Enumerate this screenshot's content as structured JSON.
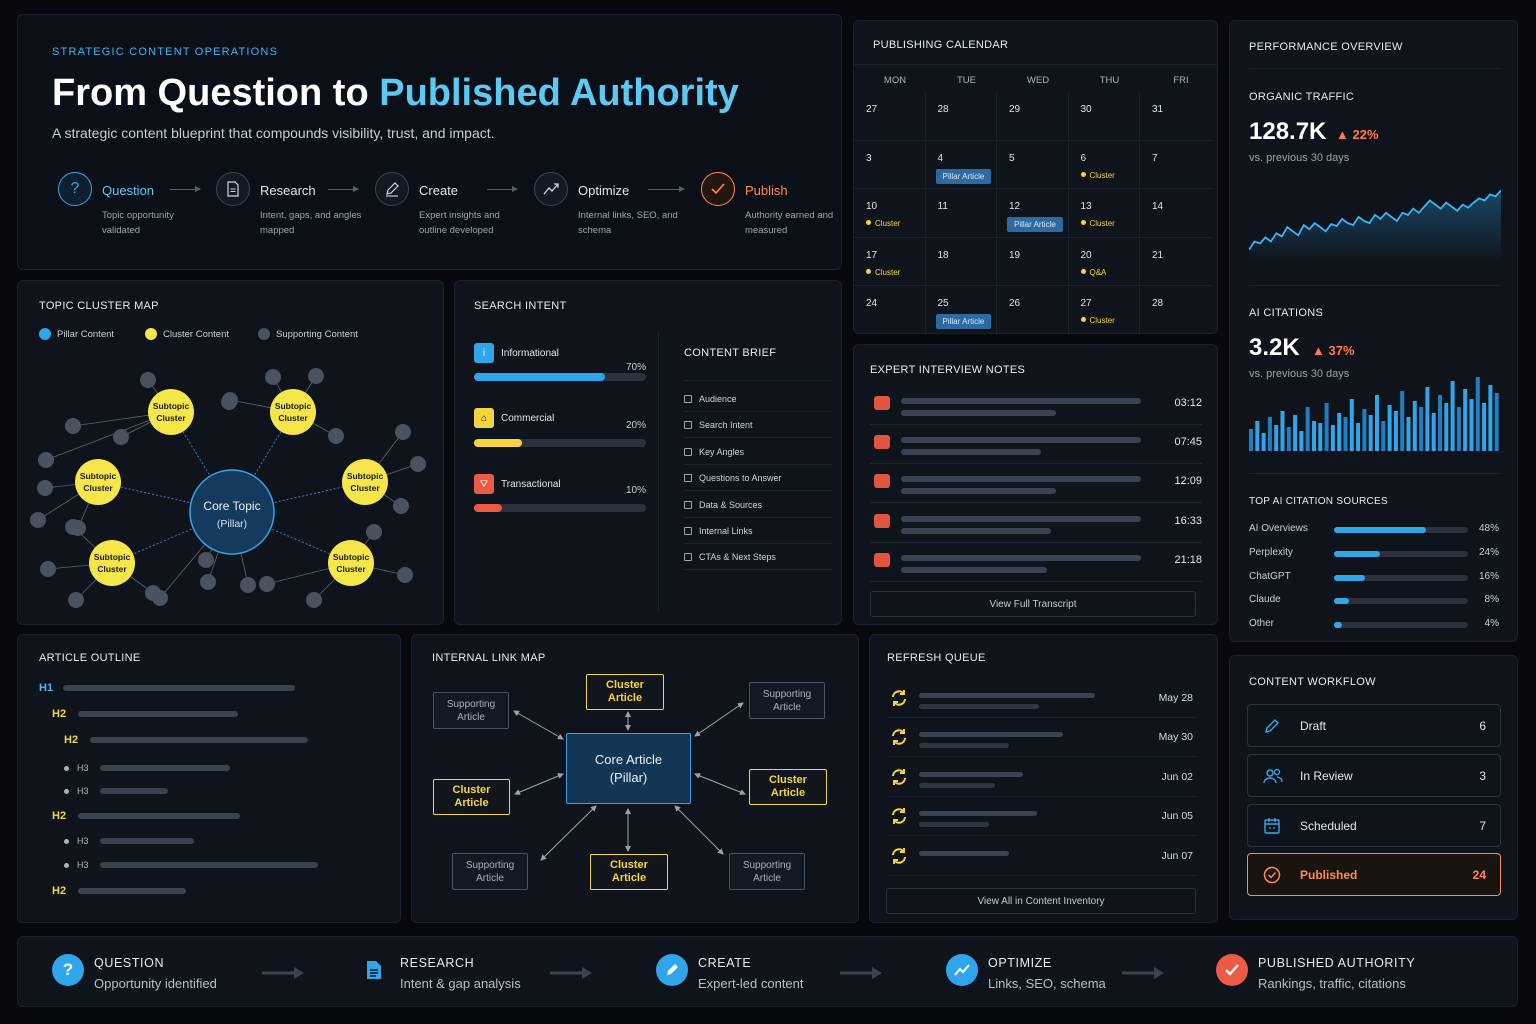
{
  "header": {
    "eyebrow": "STRATEGIC CONTENT OPERATIONS",
    "title_prefix": "From Question to ",
    "title_highlight": "Published Authority",
    "subtitle": "A strategic content blueprint that compounds visibility, trust, and impact.",
    "steps": [
      {
        "label": "Question",
        "desc": "Topic opportunity validated",
        "icon": "question-icon"
      },
      {
        "label": "Research",
        "desc": "Intent, gaps, and angles mapped",
        "icon": "document-icon"
      },
      {
        "label": "Create",
        "desc": "Expert insights and outline developed",
        "icon": "pencil-icon"
      },
      {
        "label": "Optimize",
        "desc": "Internal links, SEO, and schema",
        "icon": "trend-icon"
      },
      {
        "label": "Publish",
        "desc": "Authority earned and measured",
        "icon": "check-icon"
      }
    ],
    "colors": {
      "accent": "#5cc9f3",
      "publish": "#ff8a4c"
    }
  },
  "calendar": {
    "title": "PUBLISHING CALENDAR",
    "days": [
      "MON",
      "TUE",
      "WED",
      "THU",
      "FRI"
    ],
    "weeks": [
      [
        {
          "d": "27"
        },
        {
          "d": "28"
        },
        {
          "d": "29"
        },
        {
          "d": "30"
        },
        {
          "d": "31"
        }
      ],
      [
        {
          "d": "3"
        },
        {
          "d": "4",
          "pill": "Pillar Article"
        },
        {
          "d": "5"
        },
        {
          "d": "6",
          "tag": "Cluster"
        },
        {
          "d": "7"
        }
      ],
      [
        {
          "d": "10",
          "tag": "Cluster"
        },
        {
          "d": "11"
        },
        {
          "d": "12",
          "pill": "Pillar Article"
        },
        {
          "d": "13",
          "tag": "Cluster"
        },
        {
          "d": "14"
        }
      ],
      [
        {
          "d": "17",
          "tag": "Cluster"
        },
        {
          "d": "18"
        },
        {
          "d": "19"
        },
        {
          "d": "20",
          "tag": "Q&A"
        },
        {
          "d": "21"
        }
      ],
      [
        {
          "d": "24"
        },
        {
          "d": "25",
          "pill": "Pillar Article"
        },
        {
          "d": "26"
        },
        {
          "d": "27",
          "tag": "Cluster"
        },
        {
          "d": "28"
        }
      ]
    ]
  },
  "performance": {
    "title": "PERFORMANCE OVERVIEW",
    "organic": {
      "label": "ORGANIC TRAFFIC",
      "value": "128.7K",
      "change": "22%",
      "note": "vs. previous 30 days"
    },
    "citations": {
      "label": "AI CITATIONS",
      "value": "3.2K",
      "change": "37%",
      "note": "vs. previous 30 days"
    },
    "sources_title": "TOP AI CITATION SOURCES",
    "sources": [
      {
        "name": "AI Overviews",
        "pct": "48%",
        "value": 48
      },
      {
        "name": "Perplexity",
        "pct": "24%",
        "value": 24
      },
      {
        "name": "ChatGPT",
        "pct": "16%",
        "value": 16
      },
      {
        "name": "Claude",
        "pct": "8%",
        "value": 8
      },
      {
        "name": "Other",
        "pct": "4%",
        "value": 4
      }
    ]
  },
  "topic_map": {
    "title": "TOPIC CLUSTER MAP",
    "legend": [
      "Pillar Content",
      "Cluster Content",
      "Supporting Content"
    ],
    "core": [
      "Core Topic",
      "(Pillar)"
    ],
    "cluster": [
      "Subtopic",
      "Cluster"
    ]
  },
  "search_intent": {
    "title": "SEARCH INTENT",
    "items": [
      {
        "label": "Informational",
        "pct": "70%",
        "value": 70,
        "color": "#2fa6ea"
      },
      {
        "label": "Commercial",
        "pct": "20%",
        "value": 20,
        "color": "#f5d53b"
      },
      {
        "label": "Transactional",
        "pct": "10%",
        "value": 10,
        "color": "#ea5a45"
      }
    ],
    "brief_title": "CONTENT BRIEF",
    "brief": [
      "Audience",
      "Search Intent",
      "Key Angles",
      "Questions to Answer",
      "Data & Sources",
      "Internal Links",
      "CTAs & Next Steps"
    ]
  },
  "interviews": {
    "title": "EXPERT INTERVIEW NOTES",
    "times": [
      "03:12",
      "07:45",
      "12:09",
      "16:33",
      "21:18"
    ],
    "button": "View Full Transcript"
  },
  "outline": {
    "title": "ARTICLE OUTLINE",
    "rows": [
      {
        "tag": "H1",
        "level": "h1"
      },
      {
        "tag": "H2",
        "level": "h2"
      },
      {
        "tag": "H2",
        "level": "h2"
      },
      {
        "tag": "H3",
        "level": "h3"
      },
      {
        "tag": "H3",
        "level": "h3"
      },
      {
        "tag": "H2",
        "level": "h2"
      },
      {
        "tag": "H3",
        "level": "h3"
      },
      {
        "tag": "H3",
        "level": "h3"
      },
      {
        "tag": "H2",
        "level": "h2"
      }
    ]
  },
  "link_map": {
    "title": "INTERNAL LINK MAP",
    "core": [
      "Core Article",
      "(Pillar)"
    ],
    "cluster": [
      "Cluster",
      "Article"
    ],
    "supporting": [
      "Supporting",
      "Article"
    ]
  },
  "refresh": {
    "title": "REFRESH QUEUE",
    "dates": [
      "May 28",
      "May 30",
      "Jun 02",
      "Jun 05",
      "Jun 07"
    ],
    "button": "View All in Content Inventory"
  },
  "workflow": {
    "title": "CONTENT WORKFLOW",
    "items": [
      {
        "label": "Draft",
        "count": "6",
        "icon": "pencil-icon"
      },
      {
        "label": "In Review",
        "count": "3",
        "icon": "users-icon"
      },
      {
        "label": "Scheduled",
        "count": "7",
        "icon": "calendar-icon"
      },
      {
        "label": "Published",
        "count": "24",
        "icon": "check-circle-icon"
      }
    ]
  },
  "footer": [
    {
      "title": "QUESTION",
      "sub": "Opportunity identified",
      "icon": "question-icon",
      "color": "#2fa6ea"
    },
    {
      "title": "RESEARCH",
      "sub": "Intent & gap analysis",
      "icon": "document-icon",
      "color": "#2fa6ea"
    },
    {
      "title": "CREATE",
      "sub": "Expert-led content",
      "icon": "pencil-icon",
      "color": "#2fa6ea"
    },
    {
      "title": "OPTIMIZE",
      "sub": "Links, SEO, schema",
      "icon": "trend-icon",
      "color": "#2fa6ea"
    },
    {
      "title": "PUBLISHED AUTHORITY",
      "sub": "Rankings, traffic, citations",
      "icon": "check-icon",
      "color": "#ea5a45"
    }
  ]
}
